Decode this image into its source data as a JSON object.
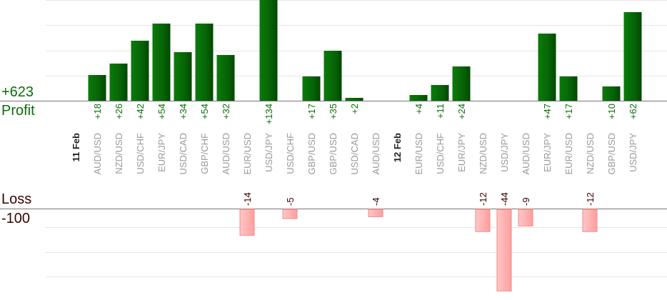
{
  "chart_data": {
    "type": "bar",
    "profit_total": "+623",
    "profit_label": "Profit",
    "loss_label": "Loss",
    "loss_total": "-100",
    "colors": {
      "profit": "#0a6e0a",
      "loss": "#ffb3b3",
      "date": "#222222",
      "pair": "#999999"
    },
    "categories": [
      {
        "label": "11 Feb",
        "kind": "date"
      },
      {
        "label": "AUD/USD",
        "value": 18,
        "text": "+18"
      },
      {
        "label": "NZD/USD",
        "value": 26,
        "text": "+26"
      },
      {
        "label": "USD/CHF",
        "value": 42,
        "text": "+42"
      },
      {
        "label": "EUR/JPY",
        "value": 54,
        "text": "+54"
      },
      {
        "label": "USD/CAD",
        "value": 34,
        "text": "+34"
      },
      {
        "label": "GBP/CHF",
        "value": 54,
        "text": "+54"
      },
      {
        "label": "AUD/USD",
        "value": 32,
        "text": "+32"
      },
      {
        "label": "EUR/USD",
        "value": -14,
        "text": "-14"
      },
      {
        "label": "USD/JPY",
        "value": 134,
        "text": "+134"
      },
      {
        "label": "USD/CHF",
        "value": -5,
        "text": "-5"
      },
      {
        "label": "GBP/USD",
        "value": 17,
        "text": "+17"
      },
      {
        "label": "GBP/USD",
        "value": 35,
        "text": "+35"
      },
      {
        "label": "USD/CAD",
        "value": 2,
        "text": "+2"
      },
      {
        "label": "AUD/USD",
        "value": -4,
        "text": "-4"
      },
      {
        "label": "12 Feb",
        "kind": "date"
      },
      {
        "label": "EUR/USD",
        "value": 4,
        "text": "+4"
      },
      {
        "label": "USD/CHF",
        "value": 11,
        "text": "+11"
      },
      {
        "label": "EUR/JPY",
        "value": 24,
        "text": "+24"
      },
      {
        "label": "NZD/USD",
        "value": -12,
        "text": "-12"
      },
      {
        "label": "USD/JPY",
        "value": -44,
        "text": "-44"
      },
      {
        "label": "AUD/USD",
        "value": -9,
        "text": "-9"
      },
      {
        "label": "EUR/JPY",
        "value": 47,
        "text": "+47"
      },
      {
        "label": "EUR/USD",
        "value": 17,
        "text": "+17"
      },
      {
        "label": "NZD/USD",
        "value": -12,
        "text": "-12"
      },
      {
        "label": "GBP/USD",
        "value": 10,
        "text": "+10"
      },
      {
        "label": "USD/JPY",
        "value": 62,
        "text": "+62"
      }
    ]
  }
}
